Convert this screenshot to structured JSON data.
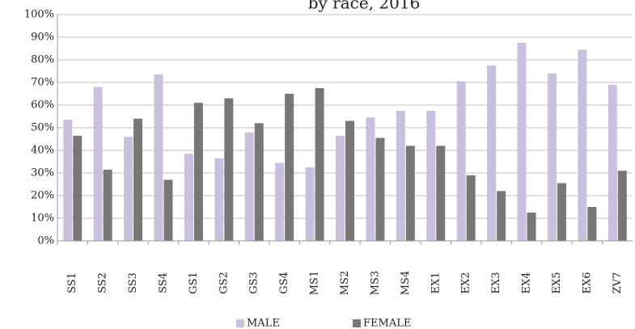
{
  "chart_data": {
    "type": "bar",
    "title": "by race, 2016",
    "categories": [
      "SS1",
      "SS2",
      "SS3",
      "SS4",
      "GS1",
      "GS2",
      "GS3",
      "GS4",
      "MS1",
      "MS2",
      "MS3",
      "MS4",
      "EX1",
      "EX2",
      "EX3",
      "EX4",
      "EX5",
      "EX6",
      "ZV7"
    ],
    "series": [
      {
        "name": "MALE",
        "color": "#c8c0dc",
        "values": [
          53.5,
          68,
          46,
          73.5,
          38.5,
          36.5,
          48,
          34.5,
          32.5,
          46.5,
          54.5,
          57.5,
          57.5,
          70.5,
          77.5,
          87.5,
          74,
          84.5,
          69
        ]
      },
      {
        "name": "FEMALE",
        "color": "#777777",
        "values": [
          46.5,
          31.5,
          54,
          27,
          61,
          63,
          52,
          65,
          67.5,
          53,
          45.5,
          42,
          42,
          29,
          22,
          12.5,
          25.5,
          15,
          31
        ]
      }
    ],
    "ylim": [
      0,
      100
    ],
    "yticks": [
      "0%",
      "10%",
      "20%",
      "30%",
      "40%",
      "50%",
      "60%",
      "70%",
      "80%",
      "90%",
      "100%"
    ],
    "grid": true,
    "legend_position": "bottom"
  }
}
